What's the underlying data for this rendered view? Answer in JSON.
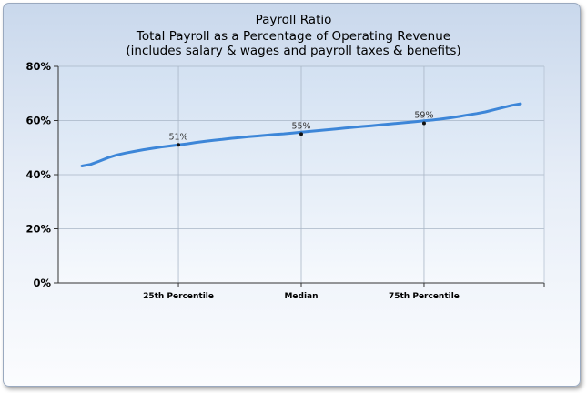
{
  "chart_data": {
    "type": "line",
    "title": "Payroll Ratio",
    "subtitle_lines": [
      "Total Payroll as a Percentage of Operating Revenue",
      "(includes salary & wages and payroll taxes & benefits)"
    ],
    "xlabel": "",
    "ylabel": "",
    "ylim": [
      0,
      80
    ],
    "y_ticks": [
      "0%",
      "20%",
      "40%",
      "60%",
      "80%"
    ],
    "x_ticks": [
      "25th Percentile",
      "Median",
      "75th Percentile"
    ],
    "grid": true,
    "series": [
      {
        "color": "#3d86d8",
        "points": [
          [
            0.0,
            43.2
          ],
          [
            0.02,
            43.8
          ],
          [
            0.04,
            45.0
          ],
          [
            0.06,
            46.3
          ],
          [
            0.08,
            47.3
          ],
          [
            0.1,
            48.0
          ],
          [
            0.12,
            48.6
          ],
          [
            0.14,
            49.2
          ],
          [
            0.16,
            49.7
          ],
          [
            0.18,
            50.2
          ],
          [
            0.2,
            50.6
          ],
          [
            0.22,
            51.0
          ],
          [
            0.24,
            51.4
          ],
          [
            0.26,
            51.9
          ],
          [
            0.28,
            52.3
          ],
          [
            0.3,
            52.7
          ],
          [
            0.32,
            53.0
          ],
          [
            0.34,
            53.4
          ],
          [
            0.36,
            53.7
          ],
          [
            0.38,
            54.0
          ],
          [
            0.4,
            54.3
          ],
          [
            0.42,
            54.6
          ],
          [
            0.44,
            54.9
          ],
          [
            0.46,
            55.1
          ],
          [
            0.48,
            55.4
          ],
          [
            0.5,
            55.7
          ],
          [
            0.52,
            56.0
          ],
          [
            0.54,
            56.3
          ],
          [
            0.56,
            56.6
          ],
          [
            0.58,
            56.9
          ],
          [
            0.6,
            57.2
          ],
          [
            0.62,
            57.5
          ],
          [
            0.64,
            57.8
          ],
          [
            0.66,
            58.1
          ],
          [
            0.68,
            58.4
          ],
          [
            0.7,
            58.7
          ],
          [
            0.72,
            59.0
          ],
          [
            0.74,
            59.3
          ],
          [
            0.76,
            59.6
          ],
          [
            0.78,
            59.9
          ],
          [
            0.8,
            60.2
          ],
          [
            0.82,
            60.6
          ],
          [
            0.84,
            61.0
          ],
          [
            0.86,
            61.5
          ],
          [
            0.88,
            62.1
          ],
          [
            0.9,
            62.6
          ],
          [
            0.92,
            63.2
          ],
          [
            0.94,
            64.0
          ],
          [
            0.96,
            64.8
          ],
          [
            0.98,
            65.6
          ],
          [
            1.0,
            66.2
          ]
        ]
      }
    ],
    "markers": [
      {
        "x": 0.22,
        "y": 51,
        "label": "51%"
      },
      {
        "x": 0.5,
        "y": 55,
        "label": "55%"
      },
      {
        "x": 0.78,
        "y": 59,
        "label": "59%"
      }
    ]
  }
}
